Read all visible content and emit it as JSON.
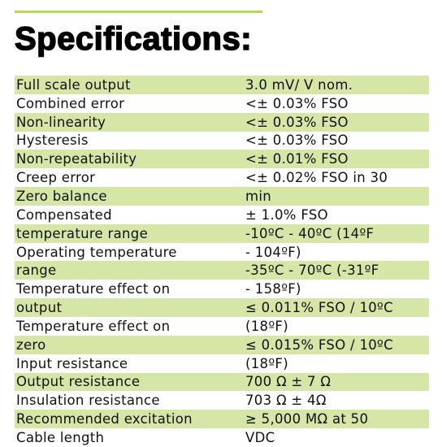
{
  "header": {
    "title": "Specifications:"
  },
  "table": {
    "rows": [
      [
        "Full scale output",
        "3.0 mV/ V nom."
      ],
      [
        "Combined error",
        "<± 0.03% FSO"
      ],
      [
        "Non-linearity",
        "<± 0.03% FSO"
      ],
      [
        "Hysteresis",
        "<± 0.03% FSO"
      ],
      [
        "Non-repeatability",
        "<± 0.01% FSO"
      ],
      [
        "Creep error",
        "<± 0.02% FSO in 30"
      ],
      [
        "Zero balance",
        "min"
      ],
      [
        "Compensated",
        "± 1.0% FSO"
      ],
      [
        "temperature range",
        "-10ºC - 40ºC (14ºF"
      ],
      [
        "Operating temperature",
        "- 104ºF)"
      ],
      [
        "range",
        "-35ºC - 70ºC (-31ºF"
      ],
      [
        "Temperature effect on",
        "- 158ºF)"
      ],
      [
        "output",
        "≤ 0.011% FSO / 10ºC"
      ],
      [
        "Temperature effect on",
        "(18ºF)"
      ],
      [
        "zero",
        "≤ 0.015% FSO / 10ºC"
      ],
      [
        "Input resistance",
        "(18ºF)"
      ],
      [
        "Output resistance",
        "700 Ω ± 7 Ω"
      ],
      [
        "Insulation resistance",
        "703 Ω ± 4Ω"
      ],
      [
        "Recommended excitation",
        "≥ 5,000 MΩ at 50"
      ],
      [
        "Cable length",
        "VDC"
      ]
    ]
  }
}
